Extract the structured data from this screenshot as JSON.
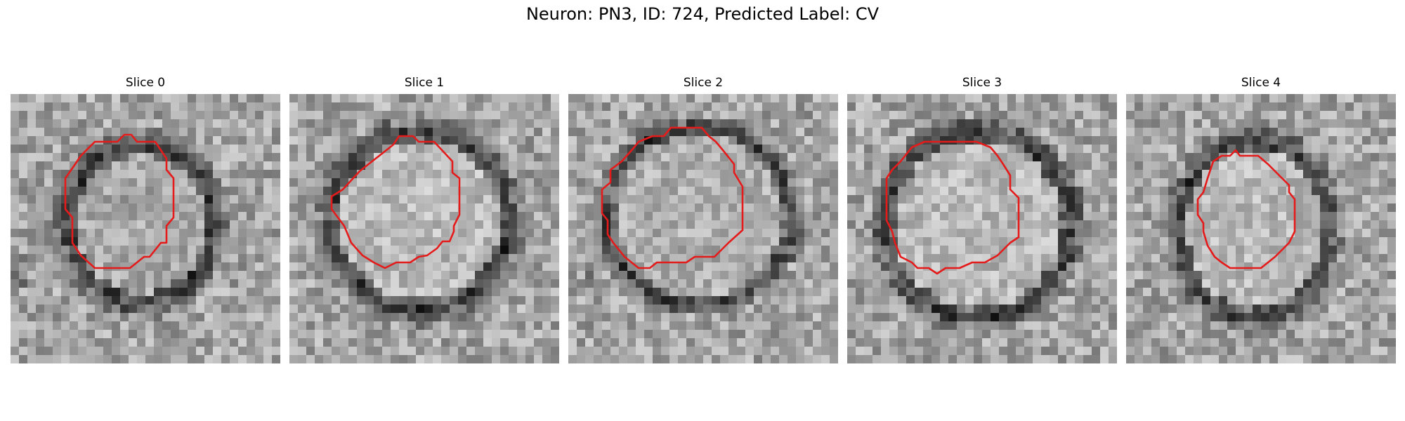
{
  "figure": {
    "title": "Neuron: PN3, ID: 724, Predicted Label: CV"
  },
  "panels": [
    {
      "title": "Slice 0"
    },
    {
      "title": "Slice 1"
    },
    {
      "title": "Slice 2"
    },
    {
      "title": "Slice 3"
    },
    {
      "title": "Slice 4"
    }
  ],
  "colors": {
    "contour": "#e51b1b",
    "ring": "#2a2a2a"
  }
}
